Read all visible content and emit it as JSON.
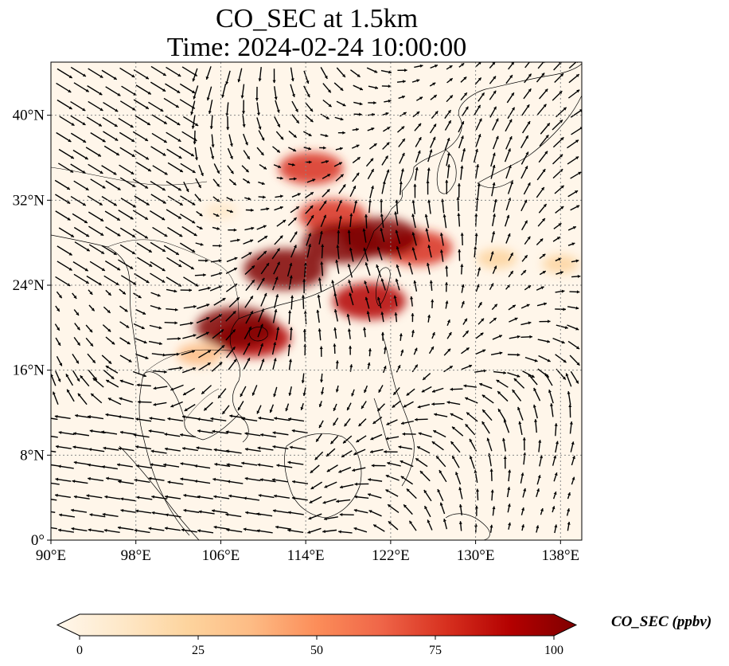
{
  "title": {
    "line1": "CO_SEC at 1.5km",
    "line2": "Time: 2024-02-24 10:00:00"
  },
  "chart_data": {
    "type": "heatmap",
    "variable": "CO_SEC",
    "level": "1.5km",
    "time": "2024-02-24 10:00:00",
    "overlay": "wind vectors (quiver)",
    "projection": "PlateCarree",
    "lon_range": [
      90,
      140
    ],
    "lat_range": [
      0,
      45
    ],
    "lon_ticks": [
      "90°E",
      "98°E",
      "106°E",
      "114°E",
      "122°E",
      "130°E",
      "138°E"
    ],
    "lon_tick_values": [
      90,
      98,
      106,
      114,
      122,
      130,
      138
    ],
    "lat_ticks": [
      "0°",
      "8°N",
      "16°N",
      "24°N",
      "32°N",
      "40°N"
    ],
    "lat_tick_values": [
      0,
      8,
      16,
      24,
      32,
      40
    ],
    "gridlines": "dotted",
    "colormap": "OrRd",
    "colorbar": {
      "label": "CO_SEC (ppbv)",
      "ticks": [
        "0",
        "25",
        "50",
        "75",
        "100"
      ],
      "tick_values": [
        0,
        25,
        50,
        75,
        100
      ],
      "range": [
        0,
        100
      ],
      "extend": "both",
      "orientation": "horizontal",
      "colors": [
        "#fff7ec",
        "#fee8c8",
        "#fdd49e",
        "#fdbb84",
        "#fc8d59",
        "#ef6548",
        "#d7301f",
        "#b30000",
        "#7f0000"
      ]
    },
    "plumes": [
      {
        "lon": 107.5,
        "lat": 20.0,
        "value": 100
      },
      {
        "lon": 112.0,
        "lat": 25.5,
        "value": 100
      },
      {
        "lon": 117.5,
        "lat": 28.0,
        "value": 100
      },
      {
        "lon": 121.0,
        "lat": 28.5,
        "value": 95
      },
      {
        "lon": 124.5,
        "lat": 27.5,
        "value": 80
      },
      {
        "lon": 109.0,
        "lat": 19.0,
        "value": 90
      },
      {
        "lon": 120.0,
        "lat": 22.5,
        "value": 85
      },
      {
        "lon": 104.0,
        "lat": 17.5,
        "value": 35
      },
      {
        "lon": 114.5,
        "lat": 35.0,
        "value": 70
      },
      {
        "lon": 116.5,
        "lat": 30.5,
        "value": 75
      },
      {
        "lon": 132.0,
        "lat": 26.5,
        "value": 25
      },
      {
        "lon": 138.0,
        "lat": 26.0,
        "value": 20
      },
      {
        "lon": 106.0,
        "lat": 31.0,
        "value": 12
      }
    ]
  }
}
